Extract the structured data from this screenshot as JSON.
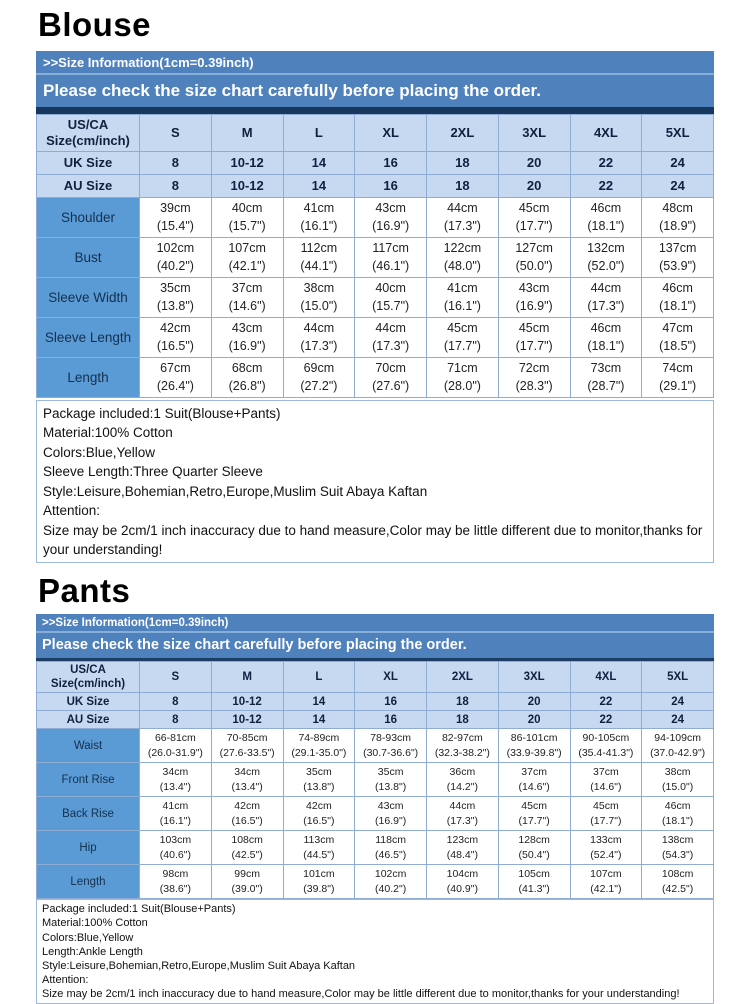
{
  "colors": {
    "banner_blue": "#4f81bd",
    "header_light_blue": "#c6d9f1",
    "label_medium_blue": "#5b9bd5",
    "dark_navy_strip": "#17375e",
    "table_border": "#8fadd4",
    "banner_text": "#ffffff"
  },
  "blouse": {
    "title": "Blouse",
    "banner": {
      "size_info": ">>Size Information(1cm=0.39inch)",
      "check_notice": "Please check the size chart carefully before placing the order."
    },
    "table": {
      "corner": "US/CA\nSize(cm/inch)",
      "size_columns": [
        "S",
        "M",
        "L",
        "XL",
        "2XL",
        "3XL",
        "4XL",
        "5XL"
      ],
      "uk_row": {
        "label": "UK Size",
        "values": [
          "8",
          "10-12",
          "14",
          "16",
          "18",
          "20",
          "22",
          "24"
        ]
      },
      "au_row": {
        "label": "AU Size",
        "values": [
          "8",
          "10-12",
          "14",
          "16",
          "18",
          "20",
          "22",
          "24"
        ]
      },
      "rows": [
        {
          "label": "Shoulder",
          "cells": [
            {
              "cm": "39cm",
              "in": "(15.4\")"
            },
            {
              "cm": "40cm",
              "in": "(15.7\")"
            },
            {
              "cm": "41cm",
              "in": "(16.1\")"
            },
            {
              "cm": "43cm",
              "in": "(16.9\")"
            },
            {
              "cm": "44cm",
              "in": "(17.3\")"
            },
            {
              "cm": "45cm",
              "in": "(17.7\")"
            },
            {
              "cm": "46cm",
              "in": "(18.1\")"
            },
            {
              "cm": "48cm",
              "in": "(18.9\")"
            }
          ]
        },
        {
          "label": "Bust",
          "cells": [
            {
              "cm": "102cm",
              "in": "(40.2\")"
            },
            {
              "cm": "107cm",
              "in": "(42.1\")"
            },
            {
              "cm": "112cm",
              "in": "(44.1\")"
            },
            {
              "cm": "117cm",
              "in": "(46.1\")"
            },
            {
              "cm": "122cm",
              "in": "(48.0\")"
            },
            {
              "cm": "127cm",
              "in": "(50.0\")"
            },
            {
              "cm": "132cm",
              "in": "(52.0\")"
            },
            {
              "cm": "137cm",
              "in": "(53.9\")"
            }
          ]
        },
        {
          "label": "Sleeve Width",
          "cells": [
            {
              "cm": "35cm",
              "in": "(13.8\")"
            },
            {
              "cm": "37cm",
              "in": "(14.6\")"
            },
            {
              "cm": "38cm",
              "in": "(15.0\")"
            },
            {
              "cm": "40cm",
              "in": "(15.7\")"
            },
            {
              "cm": "41cm",
              "in": "(16.1\")"
            },
            {
              "cm": "43cm",
              "in": "(16.9\")"
            },
            {
              "cm": "44cm",
              "in": "(17.3\")"
            },
            {
              "cm": "46cm",
              "in": "(18.1\")"
            }
          ]
        },
        {
          "label": "Sleeve Length",
          "cells": [
            {
              "cm": "42cm",
              "in": "(16.5\")"
            },
            {
              "cm": "43cm",
              "in": "(16.9\")"
            },
            {
              "cm": "44cm",
              "in": "(17.3\")"
            },
            {
              "cm": "44cm",
              "in": "(17.3\")"
            },
            {
              "cm": "45cm",
              "in": "(17.7\")"
            },
            {
              "cm": "45cm",
              "in": "(17.7\")"
            },
            {
              "cm": "46cm",
              "in": "(18.1\")"
            },
            {
              "cm": "47cm",
              "in": "(18.5\")"
            }
          ]
        },
        {
          "label": "Length",
          "cells": [
            {
              "cm": "67cm",
              "in": "(26.4\")"
            },
            {
              "cm": "68cm",
              "in": "(26.8\")"
            },
            {
              "cm": "69cm",
              "in": "(27.2\")"
            },
            {
              "cm": "70cm",
              "in": "(27.6\")"
            },
            {
              "cm": "71cm",
              "in": "(28.0\")"
            },
            {
              "cm": "72cm",
              "in": "(28.3\")"
            },
            {
              "cm": "73cm",
              "in": "(28.7\")"
            },
            {
              "cm": "74cm",
              "in": "(29.1\")"
            }
          ]
        }
      ]
    },
    "info_lines": [
      "Package included:1 Suit(Blouse+Pants)",
      "Material:100% Cotton",
      "Colors:Blue,Yellow",
      "Sleeve Length:Three Quarter Sleeve",
      "Style:Leisure,Bohemian,Retro,Europe,Muslim Suit Abaya Kaftan",
      "Attention:",
      "Size may be 2cm/1 inch inaccuracy due to hand measure,Color may be little different due to monitor,thanks for your understanding!"
    ]
  },
  "pants": {
    "title": "Pants",
    "banner": {
      "size_info": ">>Size Information(1cm=0.39inch)",
      "check_notice": "Please check the size chart carefully before placing the order."
    },
    "table": {
      "corner": "US/CA\nSize(cm/inch)",
      "size_columns": [
        "S",
        "M",
        "L",
        "XL",
        "2XL",
        "3XL",
        "4XL",
        "5XL"
      ],
      "uk_row": {
        "label": "UK Size",
        "values": [
          "8",
          "10-12",
          "14",
          "16",
          "18",
          "20",
          "22",
          "24"
        ]
      },
      "au_row": {
        "label": "AU Size",
        "values": [
          "8",
          "10-12",
          "14",
          "16",
          "18",
          "20",
          "22",
          "24"
        ]
      },
      "rows": [
        {
          "label": "Waist",
          "cells": [
            {
              "cm": "66-81cm",
              "in": "(26.0-31.9\")"
            },
            {
              "cm": "70-85cm",
              "in": "(27.6-33.5\")"
            },
            {
              "cm": "74-89cm",
              "in": "(29.1-35.0\")"
            },
            {
              "cm": "78-93cm",
              "in": "(30.7-36.6\")"
            },
            {
              "cm": "82-97cm",
              "in": "(32.3-38.2\")"
            },
            {
              "cm": "86-101cm",
              "in": "(33.9-39.8\")"
            },
            {
              "cm": "90-105cm",
              "in": "(35.4-41.3\")"
            },
            {
              "cm": "94-109cm",
              "in": "(37.0-42.9\")"
            }
          ]
        },
        {
          "label": "Front Rise",
          "cells": [
            {
              "cm": "34cm",
              "in": "(13.4\")"
            },
            {
              "cm": "34cm",
              "in": "(13.4\")"
            },
            {
              "cm": "35cm",
              "in": "(13.8\")"
            },
            {
              "cm": "35cm",
              "in": "(13.8\")"
            },
            {
              "cm": "36cm",
              "in": "(14.2\")"
            },
            {
              "cm": "37cm",
              "in": "(14.6\")"
            },
            {
              "cm": "37cm",
              "in": "(14.6\")"
            },
            {
              "cm": "38cm",
              "in": "(15.0\")"
            }
          ]
        },
        {
          "label": "Back Rise",
          "cells": [
            {
              "cm": "41cm",
              "in": "(16.1\")"
            },
            {
              "cm": "42cm",
              "in": "(16.5\")"
            },
            {
              "cm": "42cm",
              "in": "(16.5\")"
            },
            {
              "cm": "43cm",
              "in": "(16.9\")"
            },
            {
              "cm": "44cm",
              "in": "(17.3\")"
            },
            {
              "cm": "45cm",
              "in": "(17.7\")"
            },
            {
              "cm": "45cm",
              "in": "(17.7\")"
            },
            {
              "cm": "46cm",
              "in": "(18.1\")"
            }
          ]
        },
        {
          "label": "Hip",
          "cells": [
            {
              "cm": "103cm",
              "in": "(40.6\")"
            },
            {
              "cm": "108cm",
              "in": "(42.5\")"
            },
            {
              "cm": "113cm",
              "in": "(44.5\")"
            },
            {
              "cm": "118cm",
              "in": "(46.5\")"
            },
            {
              "cm": "123cm",
              "in": "(48.4\")"
            },
            {
              "cm": "128cm",
              "in": "(50.4\")"
            },
            {
              "cm": "133cm",
              "in": "(52.4\")"
            },
            {
              "cm": "138cm",
              "in": "(54.3\")"
            }
          ]
        },
        {
          "label": "Length",
          "cells": [
            {
              "cm": "98cm",
              "in": "(38.6\")"
            },
            {
              "cm": "99cm",
              "in": "(39.0\")"
            },
            {
              "cm": "101cm",
              "in": "(39.8\")"
            },
            {
              "cm": "102cm",
              "in": "(40.2\")"
            },
            {
              "cm": "104cm",
              "in": "(40.9\")"
            },
            {
              "cm": "105cm",
              "in": "(41.3\")"
            },
            {
              "cm": "107cm",
              "in": "(42.1\")"
            },
            {
              "cm": "108cm",
              "in": "(42.5\")"
            }
          ]
        }
      ]
    },
    "info_lines": [
      "Package included:1 Suit(Blouse+Pants)",
      "Material:100% Cotton",
      "Colors:Blue,Yellow",
      "Length:Ankle Length",
      "Style:Leisure,Bohemian,Retro,Europe,Muslim Suit Abaya Kaftan",
      "Attention:",
      "Size may be 2cm/1 inch inaccuracy due to hand measure,Color may be little different due to monitor,thanks for your understanding!"
    ]
  }
}
